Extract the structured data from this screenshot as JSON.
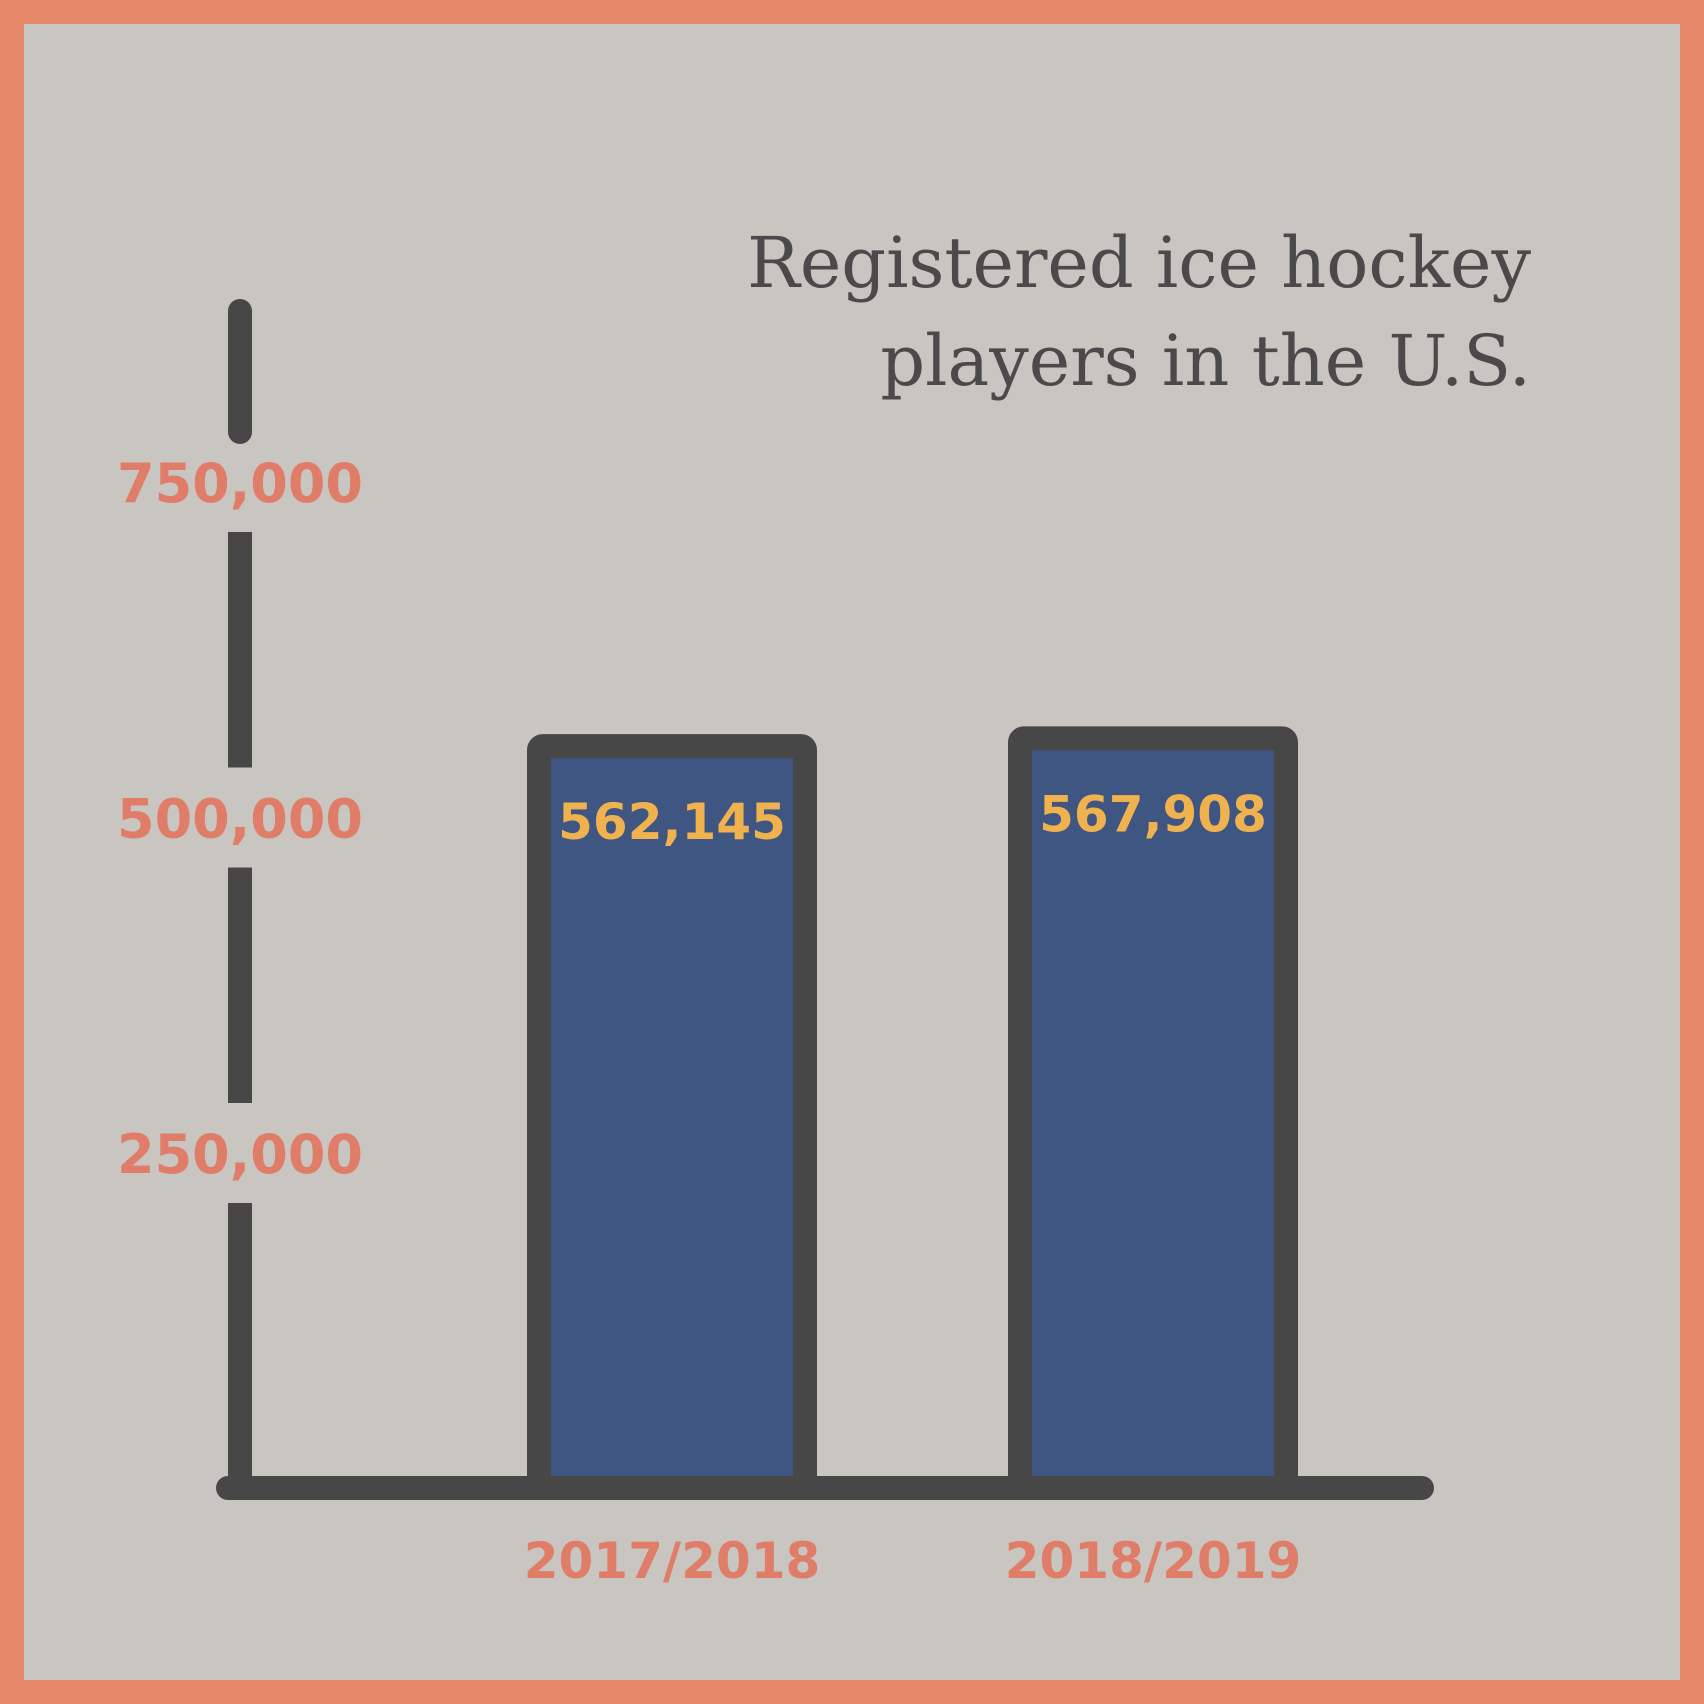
{
  "chart_data": {
    "type": "bar",
    "title": "Registered ice hockey players in the U.S.",
    "categories": [
      "2017/2018",
      "2018/2019"
    ],
    "values": [
      562145,
      567908
    ],
    "value_labels": [
      "562,145",
      "567,908"
    ],
    "y_ticks": [
      250000,
      500000,
      750000
    ],
    "y_tick_labels": [
      "250,000",
      "500,000",
      "750,000"
    ],
    "grid": false,
    "legend": "none"
  },
  "colors": {
    "background": "#c9c6c1",
    "border": "#e6896a",
    "bar_fill": "#3f5682",
    "bar_outline": "#474747",
    "axis": "#474747",
    "axis_labels": "#e07d68",
    "value_labels": "#f0b24f",
    "title": "#4a4a4a"
  }
}
